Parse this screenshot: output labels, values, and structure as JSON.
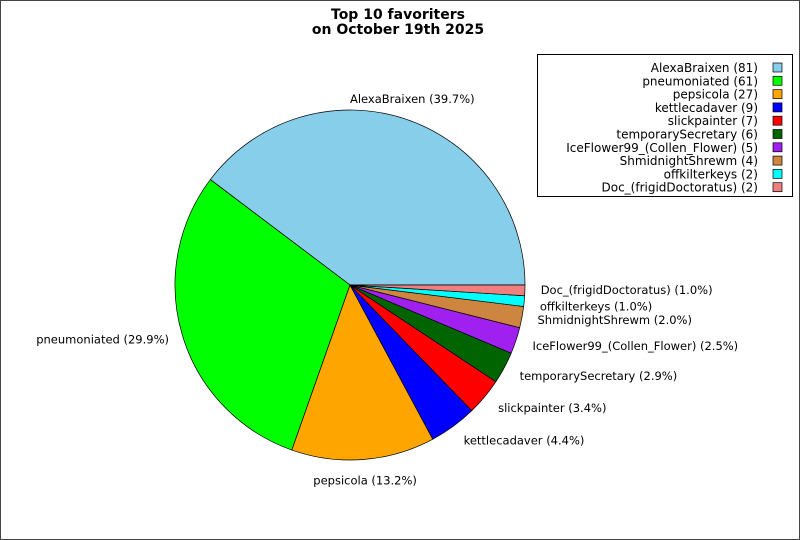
{
  "chart_data": {
    "type": "pie",
    "title": [
      "Top 10 favoriters",
      "on October 19th 2025"
    ],
    "slices": [
      {
        "name": "AlexaBraixen",
        "value": 81,
        "percent_label": "AlexaBraixen (39.7%)",
        "legend_label": "AlexaBraixen (81)",
        "color": "#87ceeb"
      },
      {
        "name": "pneumoniated",
        "value": 61,
        "percent_label": "pneumoniated (29.9%)",
        "legend_label": "pneumoniated (61)",
        "color": "#00ff00"
      },
      {
        "name": "pepsicola",
        "value": 27,
        "percent_label": "pepsicola (13.2%)",
        "legend_label": "pepsicola (27)",
        "color": "#ffa500"
      },
      {
        "name": "kettlecadaver",
        "value": 9,
        "percent_label": "kettlecadaver (4.4%)",
        "legend_label": "kettlecadaver (9)",
        "color": "#0000ff"
      },
      {
        "name": "slickpainter",
        "value": 7,
        "percent_label": "slickpainter (3.4%)",
        "legend_label": "slickpainter (7)",
        "color": "#ff0000"
      },
      {
        "name": "temporarySecretary",
        "value": 6,
        "percent_label": "temporarySecretary (2.9%)",
        "legend_label": "temporarySecretary (6)",
        "color": "#006400"
      },
      {
        "name": "IceFlower99_(Collen_Flower)",
        "value": 5,
        "percent_label": "IceFlower99_(Collen_Flower) (2.5%)",
        "legend_label": "IceFlower99_(Collen_Flower) (5)",
        "color": "#a020f0"
      },
      {
        "name": "ShmidnightShrewm",
        "value": 4,
        "percent_label": "ShmidnightShrewm (2.0%)",
        "legend_label": "ShmidnightShrewm (4)",
        "color": "#cd853f"
      },
      {
        "name": "offkilterkeys",
        "value": 2,
        "percent_label": "offkilterkeys (1.0%)",
        "legend_label": "offkilterkeys (2)",
        "color": "#00ffff"
      },
      {
        "name": "Doc_(frigidDoctoratus)",
        "value": 2,
        "percent_label": "Doc_(frigidDoctoratus) (1.0%)",
        "legend_label": "Doc_(frigidDoctoratus) (2)",
        "color": "#f08080"
      }
    ],
    "legend_position": "top-right"
  }
}
